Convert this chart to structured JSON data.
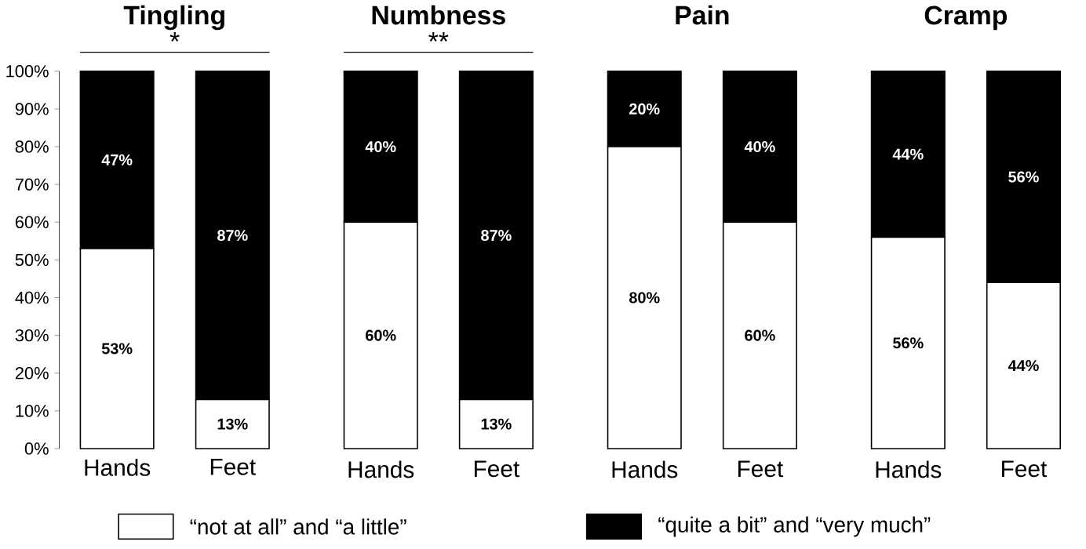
{
  "chart_data": [
    {
      "type": "bar",
      "stacked": true,
      "title": "Tingling",
      "categories": [
        "Hands",
        "Feet"
      ],
      "ylim": [
        0,
        100
      ],
      "yticks": [
        {
          "value": 0,
          "label": "0%"
        },
        {
          "value": 10,
          "label": "10%"
        },
        {
          "value": 20,
          "label": "20%"
        },
        {
          "value": 30,
          "label": "30%"
        },
        {
          "value": 40,
          "label": "40%"
        },
        {
          "value": 50,
          "label": "50%"
        },
        {
          "value": 60,
          "label": "60%"
        },
        {
          "value": 70,
          "label": "70%"
        },
        {
          "value": 80,
          "label": "80%"
        },
        {
          "value": 90,
          "label": "90%"
        },
        {
          "value": 100,
          "label": "100%"
        }
      ],
      "legend": "bottom",
      "annotations": [
        "*"
      ],
      "series": [
        {
          "name": "“not at all” and “a little”",
          "color": "#ffffff",
          "values": [
            53,
            13
          ],
          "value_labels": [
            "53%",
            "13%"
          ]
        },
        {
          "name": "“quite a bit” and “very much”",
          "color": "#000000",
          "values": [
            47,
            87
          ],
          "value_labels": [
            "47%",
            "87%"
          ]
        }
      ]
    },
    {
      "type": "bar",
      "stacked": true,
      "title": "Numbness",
      "categories": [
        "Hands",
        "Feet"
      ],
      "ylim": [
        0,
        100
      ],
      "tick_labels": "x",
      "annotations": [
        "**"
      ],
      "series": [
        {
          "color": "#ffffff",
          "values": [
            60,
            13
          ],
          "value_labels": [
            "60%",
            "13%"
          ]
        },
        {
          "color": "#000000",
          "values": [
            40,
            87
          ],
          "value_labels": [
            "40%",
            "87%"
          ]
        }
      ]
    },
    {
      "type": "bar",
      "stacked": true,
      "title": "Pain",
      "categories": [
        "Hands",
        "Feet"
      ],
      "ylim": [
        0,
        100
      ],
      "tick_labels": "x",
      "series": [
        {
          "color": "#ffffff",
          "values": [
            80,
            60
          ],
          "value_labels": [
            "80%",
            "60%"
          ]
        },
        {
          "color": "#000000",
          "values": [
            20,
            40
          ],
          "value_labels": [
            "20%",
            "40%"
          ]
        }
      ]
    },
    {
      "type": "bar",
      "stacked": true,
      "title": "Cramp",
      "categories": [
        "Hands",
        "Feet"
      ],
      "ylim": [
        0,
        100
      ],
      "tick_labels": "x",
      "series": [
        {
          "color": "#ffffff",
          "values": [
            56,
            44
          ],
          "value_labels": [
            "56%",
            "44%"
          ]
        },
        {
          "color": "#000000",
          "values": [
            44,
            56
          ],
          "value_labels": [
            "44%",
            "56%"
          ]
        }
      ]
    }
  ]
}
